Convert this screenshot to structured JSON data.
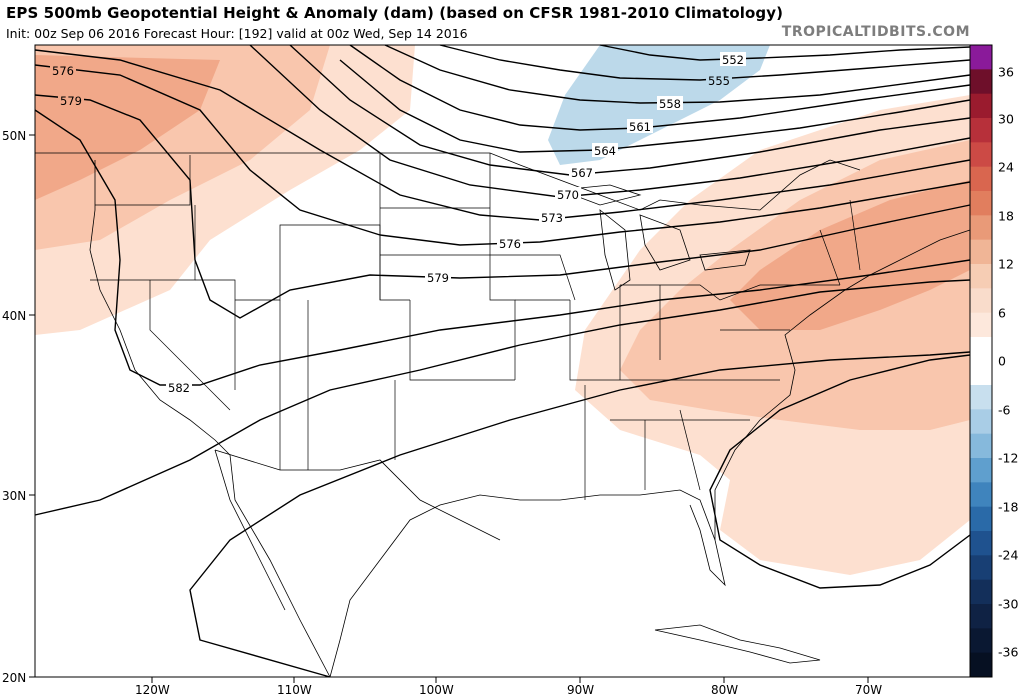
{
  "header": {
    "title": "EPS 500mb Geopotential Height & Anomaly (dam) (based on CFSR 1981-2010 Climatology)",
    "subtitle": "Init: 00z Sep 06 2016   Forecast Hour: [192]   valid at 00z Wed, Sep 14 2016",
    "brand": "TROPICALTIDBITS.COM"
  },
  "axes": {
    "lat_labels": [
      "50N",
      "40N",
      "30N",
      "20N"
    ],
    "lon_labels": [
      "120W",
      "110W",
      "100W",
      "90W",
      "80W",
      "70W"
    ]
  },
  "contours": {
    "labels": [
      "576",
      "579",
      "552",
      "555",
      "558",
      "561",
      "564",
      "567",
      "570",
      "573",
      "576",
      "579",
      "582"
    ]
  },
  "colorbar": {
    "labels": [
      "36",
      "30",
      "24",
      "18",
      "12",
      "6",
      "0",
      "-6",
      "-12",
      "-18",
      "-24",
      "-30",
      "-36"
    ],
    "colors_pos": [
      "#8a1a9a",
      "#6e0f2a",
      "#9a1b2e",
      "#b7303a",
      "#cc4a45",
      "#d9664f",
      "#e17e5e",
      "#e99a78",
      "#f0b596",
      "#f6cdb4",
      "#f9dccb",
      "#fde8dc"
    ],
    "colors_neg": [
      "#c8dfee",
      "#a9cde6",
      "#86b9dc",
      "#5f9fce",
      "#3f84bd",
      "#2a6aa8",
      "#1f528f",
      "#183f74",
      "#132f5a",
      "#0f2244",
      "#0a1832",
      "#061022"
    ]
  },
  "colors": {
    "anomaly_pos_light": "#fde0d0",
    "anomaly_pos_mid": "#f9c6ad",
    "anomaly_pos_strong": "#f1a889",
    "anomaly_neg": "#bcd9ea"
  }
}
